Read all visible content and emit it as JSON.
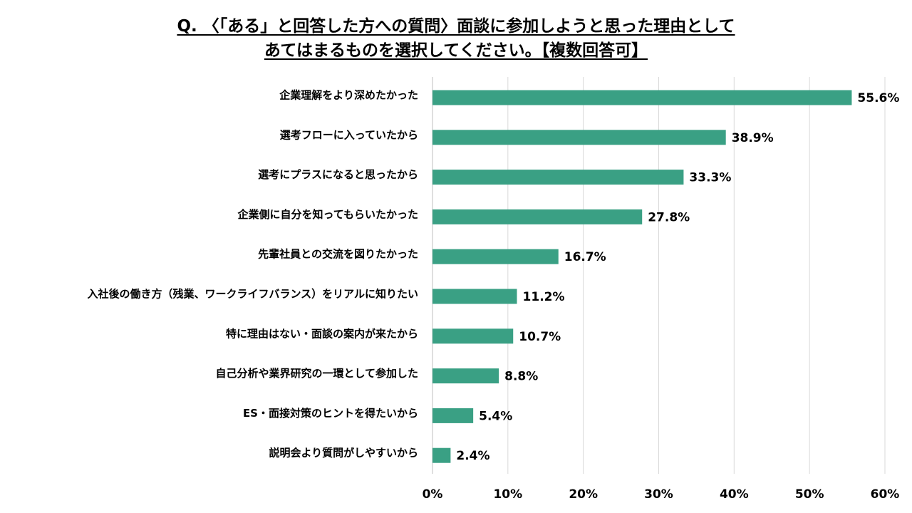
{
  "chart_data": {
    "type": "bar",
    "orientation": "horizontal",
    "title_lines": [
      "Q. 〈「ある」と回答した方への質問〉面談に参加しようと思った理由として",
      "あてはまるものを選択してください。【複数回答可】"
    ],
    "categories": [
      "企業理解をより深めたかった",
      "選考フローに入っていたから",
      "選考にプラスになると思ったから",
      "企業側に自分を知ってもらいたかった",
      "先輩社員との交流を図りたかった",
      "入社後の働き方（残業、ワークライフバランス）をリアルに知りたい",
      "特に理由はない・面談の案内が来たから",
      "自己分析や業界研究の一環として参加した",
      "ES・面接対策のヒントを得たいから",
      "説明会より質問がしやすいから"
    ],
    "values": [
      55.6,
      38.9,
      33.3,
      27.8,
      16.7,
      11.2,
      10.7,
      8.8,
      5.4,
      2.4
    ],
    "value_labels": [
      "55.6%",
      "38.9%",
      "33.3%",
      "27.8%",
      "16.7%",
      "11.2%",
      "10.7%",
      "8.8%",
      "5.4%",
      "2.4%"
    ],
    "xlim": [
      0,
      60
    ],
    "x_ticks": [
      0,
      10,
      20,
      30,
      40,
      50,
      60
    ],
    "x_tick_labels": [
      "0%",
      "10%",
      "20%",
      "30%",
      "40%",
      "50%",
      "60%"
    ],
    "grid": true,
    "bar_color": "#3aa084",
    "grid_color": "#d9d9d9"
  }
}
